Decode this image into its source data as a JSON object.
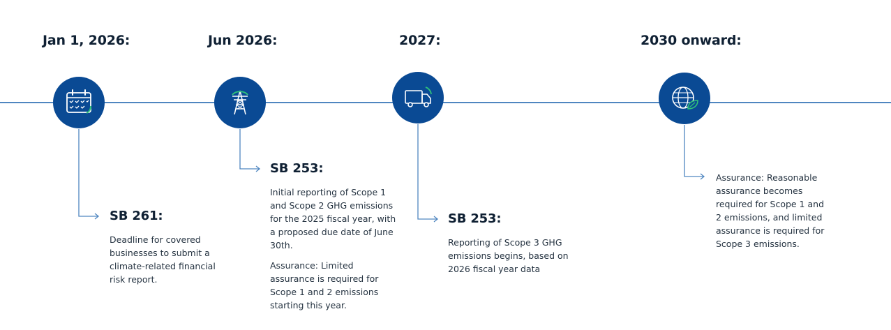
{
  "colors": {
    "axis": "#4f86c0",
    "node_fill": "#0a4a94",
    "accent": "#2fc27a",
    "text": "#253341"
  },
  "milestones": [
    {
      "date": "Jan 1, 2026:",
      "icon": "calendar-icon",
      "heading": "SB 261:",
      "paragraphs": [
        "Deadline for covered businesses to submit a climate-related financial risk report."
      ]
    },
    {
      "date": "Jun 2026:",
      "icon": "power-tower-icon",
      "heading": "SB 253:",
      "paragraphs": [
        "Initial reporting of Scope 1 and Scope 2 GHG emissions for the 2025 fiscal year, with a proposed due date of June 30th.",
        "Assurance: Limited assurance is required for Scope 1 and 2 emissions starting this year."
      ]
    },
    {
      "date": "2027:",
      "icon": "truck-icon",
      "heading": "SB 253:",
      "paragraphs": [
        "Reporting of Scope 3 GHG emissions begins, based on 2026 fiscal year data"
      ]
    },
    {
      "date": "2030 onward:",
      "icon": "globe-leaf-icon",
      "heading": "",
      "paragraphs": [
        "Assurance: Reasonable assurance becomes required for Scope 1 and 2 emissions, and limited assurance is required for Scope 3 emissions."
      ]
    }
  ]
}
